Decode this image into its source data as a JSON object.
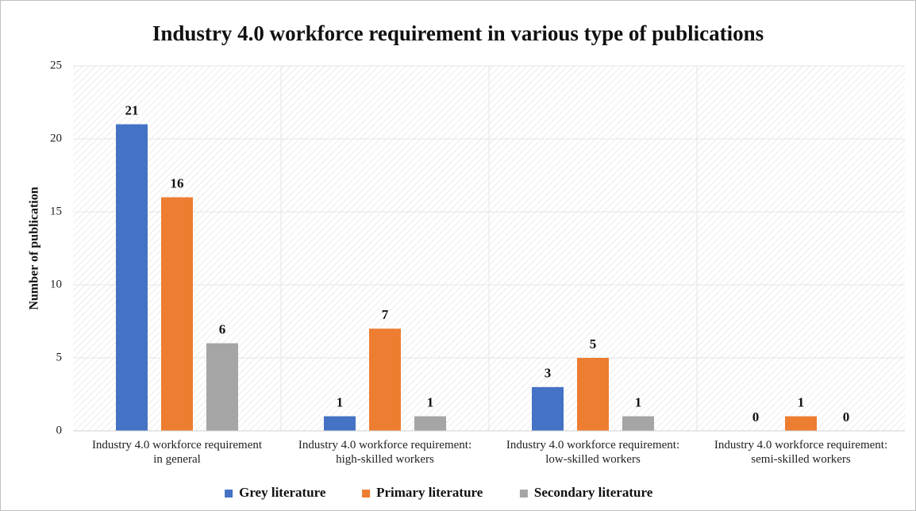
{
  "chart_data": {
    "type": "bar",
    "title": "Industry 4.0 workforce requirement in various type of publications",
    "y_label": "Number of publication",
    "categories": [
      "Industry 4.0 workforce requirement\nin general",
      "Industry 4.0 workforce requirement:\nhigh-skilled workers",
      "Industry 4.0 workforce requirement:\nlow-skilled workers",
      "Industry 4.0 workforce requirement:\nsemi-skilled workers"
    ],
    "series": [
      {
        "name": "Grey literature",
        "color": "#4472c4",
        "values": [
          21,
          1,
          3,
          0
        ]
      },
      {
        "name": "Primary literature",
        "color": "#ed7d31",
        "values": [
          16,
          7,
          5,
          1
        ]
      },
      {
        "name": "Secondary literature",
        "color": "#a5a5a5",
        "values": [
          6,
          1,
          1,
          0
        ]
      }
    ],
    "ylim": [
      0,
      25
    ],
    "yticks": [
      0,
      5,
      10,
      15,
      20,
      25
    ],
    "grid": true,
    "legend": "bottom"
  }
}
